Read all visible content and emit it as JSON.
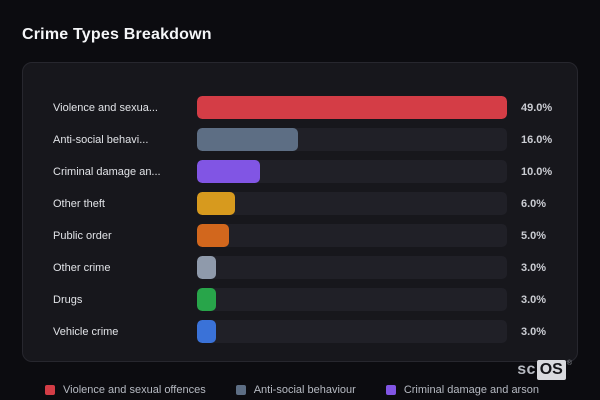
{
  "page": {
    "title": "Crime Types Breakdown"
  },
  "chart_data": {
    "type": "bar",
    "orientation": "horizontal",
    "title": "Crime Types Breakdown",
    "categories": [
      "Violence and sexual offences",
      "Anti-social behaviour",
      "Criminal damage and arson",
      "Other theft",
      "Public order",
      "Other crime",
      "Drugs",
      "Vehicle crime"
    ],
    "display_labels": [
      "Violence and sexua...",
      "Anti-social behavi...",
      "Criminal damage an...",
      "Other theft",
      "Public order",
      "Other crime",
      "Drugs",
      "Vehicle crime"
    ],
    "values": [
      49.0,
      16.0,
      10.0,
      6.0,
      5.0,
      3.0,
      3.0,
      3.0
    ],
    "value_labels": [
      "49.0%",
      "16.0%",
      "10.0%",
      "6.0%",
      "5.0%",
      "3.0%",
      "3.0%",
      "3.0%"
    ],
    "colors": [
      "#d43d46",
      "#5d6e84",
      "#8155e4",
      "#d79a1e",
      "#d2671d",
      "#8f9aab",
      "#28a54a",
      "#3a72d8"
    ],
    "xlim": [
      0,
      49
    ],
    "grid": false,
    "legend_position": "bottom",
    "legend": [
      {
        "label": "Violence and sexual offences",
        "color": "#d43d46"
      },
      {
        "label": "Anti-social behaviour",
        "color": "#5d6e84"
      },
      {
        "label": "Criminal damage and arson",
        "color": "#8155e4"
      }
    ]
  },
  "branding": {
    "logo_prefix": "sc",
    "logo_suffix": "OS",
    "registered_mark": "®"
  },
  "colors": {
    "page_bg": "#0c0c10",
    "card_bg": "#17171c",
    "card_border": "#27272e",
    "track_bg": "#202027",
    "title_text": "#f5f6f8",
    "label_text": "#e1e3e7",
    "value_text": "#cbcdd3",
    "legend_text": "#b6bac2"
  }
}
